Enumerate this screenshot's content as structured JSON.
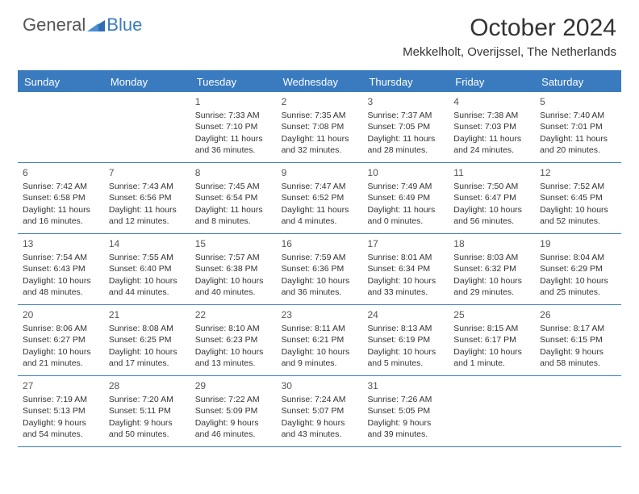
{
  "logo": {
    "text1": "General",
    "text2": "Blue"
  },
  "title": "October 2024",
  "location": "Mekkelholt, Overijssel, The Netherlands",
  "colors": {
    "accent": "#3a7bbf",
    "text": "#333333",
    "background": "#ffffff",
    "header_text": "#ffffff"
  },
  "weekdays": [
    "Sunday",
    "Monday",
    "Tuesday",
    "Wednesday",
    "Thursday",
    "Friday",
    "Saturday"
  ],
  "weeks": [
    [
      {
        "num": "",
        "sunrise": "",
        "sunset": "",
        "day1": "",
        "day2": ""
      },
      {
        "num": "",
        "sunrise": "",
        "sunset": "",
        "day1": "",
        "day2": ""
      },
      {
        "num": "1",
        "sunrise": "Sunrise: 7:33 AM",
        "sunset": "Sunset: 7:10 PM",
        "day1": "Daylight: 11 hours",
        "day2": "and 36 minutes."
      },
      {
        "num": "2",
        "sunrise": "Sunrise: 7:35 AM",
        "sunset": "Sunset: 7:08 PM",
        "day1": "Daylight: 11 hours",
        "day2": "and 32 minutes."
      },
      {
        "num": "3",
        "sunrise": "Sunrise: 7:37 AM",
        "sunset": "Sunset: 7:05 PM",
        "day1": "Daylight: 11 hours",
        "day2": "and 28 minutes."
      },
      {
        "num": "4",
        "sunrise": "Sunrise: 7:38 AM",
        "sunset": "Sunset: 7:03 PM",
        "day1": "Daylight: 11 hours",
        "day2": "and 24 minutes."
      },
      {
        "num": "5",
        "sunrise": "Sunrise: 7:40 AM",
        "sunset": "Sunset: 7:01 PM",
        "day1": "Daylight: 11 hours",
        "day2": "and 20 minutes."
      }
    ],
    [
      {
        "num": "6",
        "sunrise": "Sunrise: 7:42 AM",
        "sunset": "Sunset: 6:58 PM",
        "day1": "Daylight: 11 hours",
        "day2": "and 16 minutes."
      },
      {
        "num": "7",
        "sunrise": "Sunrise: 7:43 AM",
        "sunset": "Sunset: 6:56 PM",
        "day1": "Daylight: 11 hours",
        "day2": "and 12 minutes."
      },
      {
        "num": "8",
        "sunrise": "Sunrise: 7:45 AM",
        "sunset": "Sunset: 6:54 PM",
        "day1": "Daylight: 11 hours",
        "day2": "and 8 minutes."
      },
      {
        "num": "9",
        "sunrise": "Sunrise: 7:47 AM",
        "sunset": "Sunset: 6:52 PM",
        "day1": "Daylight: 11 hours",
        "day2": "and 4 minutes."
      },
      {
        "num": "10",
        "sunrise": "Sunrise: 7:49 AM",
        "sunset": "Sunset: 6:49 PM",
        "day1": "Daylight: 11 hours",
        "day2": "and 0 minutes."
      },
      {
        "num": "11",
        "sunrise": "Sunrise: 7:50 AM",
        "sunset": "Sunset: 6:47 PM",
        "day1": "Daylight: 10 hours",
        "day2": "and 56 minutes."
      },
      {
        "num": "12",
        "sunrise": "Sunrise: 7:52 AM",
        "sunset": "Sunset: 6:45 PM",
        "day1": "Daylight: 10 hours",
        "day2": "and 52 minutes."
      }
    ],
    [
      {
        "num": "13",
        "sunrise": "Sunrise: 7:54 AM",
        "sunset": "Sunset: 6:43 PM",
        "day1": "Daylight: 10 hours",
        "day2": "and 48 minutes."
      },
      {
        "num": "14",
        "sunrise": "Sunrise: 7:55 AM",
        "sunset": "Sunset: 6:40 PM",
        "day1": "Daylight: 10 hours",
        "day2": "and 44 minutes."
      },
      {
        "num": "15",
        "sunrise": "Sunrise: 7:57 AM",
        "sunset": "Sunset: 6:38 PM",
        "day1": "Daylight: 10 hours",
        "day2": "and 40 minutes."
      },
      {
        "num": "16",
        "sunrise": "Sunrise: 7:59 AM",
        "sunset": "Sunset: 6:36 PM",
        "day1": "Daylight: 10 hours",
        "day2": "and 36 minutes."
      },
      {
        "num": "17",
        "sunrise": "Sunrise: 8:01 AM",
        "sunset": "Sunset: 6:34 PM",
        "day1": "Daylight: 10 hours",
        "day2": "and 33 minutes."
      },
      {
        "num": "18",
        "sunrise": "Sunrise: 8:03 AM",
        "sunset": "Sunset: 6:32 PM",
        "day1": "Daylight: 10 hours",
        "day2": "and 29 minutes."
      },
      {
        "num": "19",
        "sunrise": "Sunrise: 8:04 AM",
        "sunset": "Sunset: 6:29 PM",
        "day1": "Daylight: 10 hours",
        "day2": "and 25 minutes."
      }
    ],
    [
      {
        "num": "20",
        "sunrise": "Sunrise: 8:06 AM",
        "sunset": "Sunset: 6:27 PM",
        "day1": "Daylight: 10 hours",
        "day2": "and 21 minutes."
      },
      {
        "num": "21",
        "sunrise": "Sunrise: 8:08 AM",
        "sunset": "Sunset: 6:25 PM",
        "day1": "Daylight: 10 hours",
        "day2": "and 17 minutes."
      },
      {
        "num": "22",
        "sunrise": "Sunrise: 8:10 AM",
        "sunset": "Sunset: 6:23 PM",
        "day1": "Daylight: 10 hours",
        "day2": "and 13 minutes."
      },
      {
        "num": "23",
        "sunrise": "Sunrise: 8:11 AM",
        "sunset": "Sunset: 6:21 PM",
        "day1": "Daylight: 10 hours",
        "day2": "and 9 minutes."
      },
      {
        "num": "24",
        "sunrise": "Sunrise: 8:13 AM",
        "sunset": "Sunset: 6:19 PM",
        "day1": "Daylight: 10 hours",
        "day2": "and 5 minutes."
      },
      {
        "num": "25",
        "sunrise": "Sunrise: 8:15 AM",
        "sunset": "Sunset: 6:17 PM",
        "day1": "Daylight: 10 hours",
        "day2": "and 1 minute."
      },
      {
        "num": "26",
        "sunrise": "Sunrise: 8:17 AM",
        "sunset": "Sunset: 6:15 PM",
        "day1": "Daylight: 9 hours",
        "day2": "and 58 minutes."
      }
    ],
    [
      {
        "num": "27",
        "sunrise": "Sunrise: 7:19 AM",
        "sunset": "Sunset: 5:13 PM",
        "day1": "Daylight: 9 hours",
        "day2": "and 54 minutes."
      },
      {
        "num": "28",
        "sunrise": "Sunrise: 7:20 AM",
        "sunset": "Sunset: 5:11 PM",
        "day1": "Daylight: 9 hours",
        "day2": "and 50 minutes."
      },
      {
        "num": "29",
        "sunrise": "Sunrise: 7:22 AM",
        "sunset": "Sunset: 5:09 PM",
        "day1": "Daylight: 9 hours",
        "day2": "and 46 minutes."
      },
      {
        "num": "30",
        "sunrise": "Sunrise: 7:24 AM",
        "sunset": "Sunset: 5:07 PM",
        "day1": "Daylight: 9 hours",
        "day2": "and 43 minutes."
      },
      {
        "num": "31",
        "sunrise": "Sunrise: 7:26 AM",
        "sunset": "Sunset: 5:05 PM",
        "day1": "Daylight: 9 hours",
        "day2": "and 39 minutes."
      },
      {
        "num": "",
        "sunrise": "",
        "sunset": "",
        "day1": "",
        "day2": ""
      },
      {
        "num": "",
        "sunrise": "",
        "sunset": "",
        "day1": "",
        "day2": ""
      }
    ]
  ]
}
